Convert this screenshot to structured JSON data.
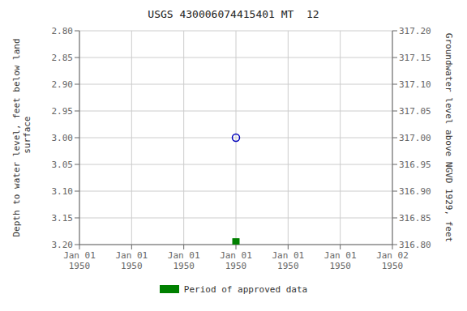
{
  "chart_data": {
    "type": "scatter",
    "title": "USGS 430006074415401 MT  12",
    "ylabel": "Depth to water level, feet below land\n surface",
    "y2label": "Groundwater level above NGVD 1929, feet",
    "categories": [
      "Jan 01\n1950",
      "Jan 01\n1950",
      "Jan 01\n1950",
      "Jan 01\n1950",
      "Jan 01\n1950",
      "Jan 01\n1950",
      "Jan 02\n1950"
    ],
    "series": [
      {
        "values": [
          null,
          null,
          null,
          3.0,
          null,
          null,
          null
        ],
        "color": "#0000bb",
        "marker": "circle-open"
      },
      {
        "name": "Period of approved data",
        "values": [
          null,
          null,
          null,
          3.195,
          null,
          null,
          null
        ],
        "color": "#008000",
        "marker": "square"
      }
    ],
    "ylim": [
      3.2,
      2.8
    ],
    "yticks": [
      {
        "value": 2.8,
        "label": "2.80"
      },
      {
        "value": 2.85,
        "label": "2.85"
      },
      {
        "value": 2.9,
        "label": "2.90"
      },
      {
        "value": 2.95,
        "label": "2.95"
      },
      {
        "value": 3.0,
        "label": "3.00"
      },
      {
        "value": 3.05,
        "label": "3.05"
      },
      {
        "value": 3.1,
        "label": "3.10"
      },
      {
        "value": 3.15,
        "label": "3.15"
      },
      {
        "value": 3.2,
        "label": "3.20"
      }
    ],
    "y2lim": [
      316.8,
      317.2
    ],
    "y2ticks": [
      {
        "value": 316.8,
        "label": "316.80"
      },
      {
        "value": 316.85,
        "label": "316.85"
      },
      {
        "value": 316.9,
        "label": "316.90"
      },
      {
        "value": 316.95,
        "label": "316.95"
      },
      {
        "value": 317.0,
        "label": "317.00"
      },
      {
        "value": 317.05,
        "label": "317.05"
      },
      {
        "value": 317.1,
        "label": "317.10"
      },
      {
        "value": 317.15,
        "label": "317.15"
      },
      {
        "value": 317.2,
        "label": "317.20"
      }
    ],
    "grid": true,
    "legend": "bottom"
  }
}
